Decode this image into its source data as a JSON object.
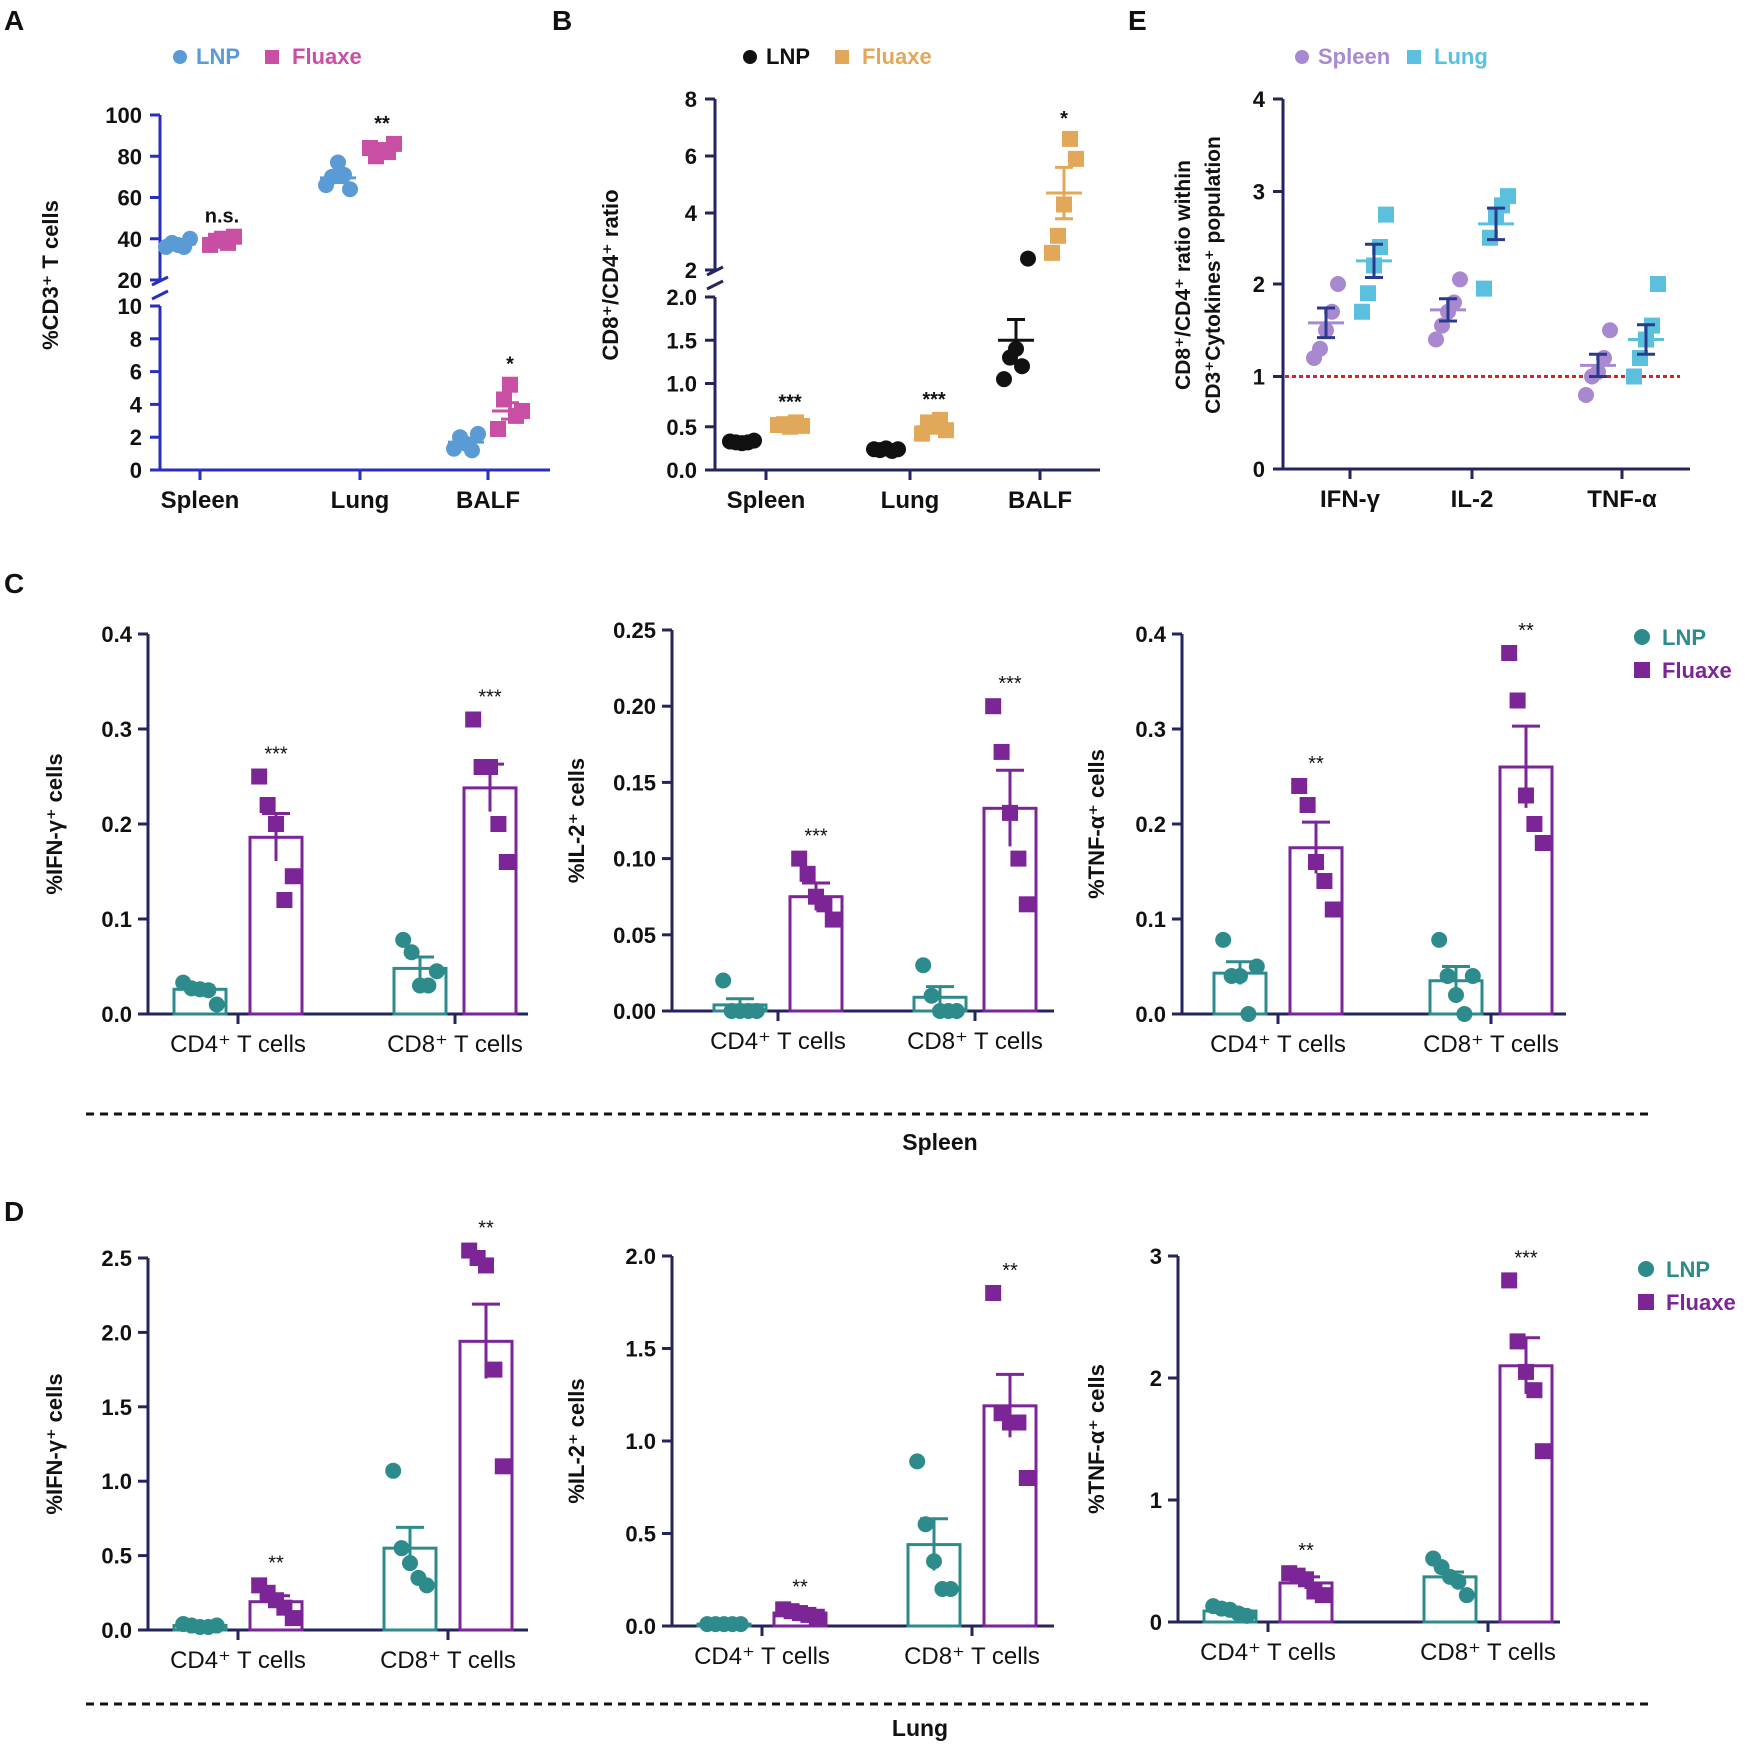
{
  "colors": {
    "axis_blue": "#2a2ebd",
    "axis_dark": "#25255e",
    "lnp_blue": "#5b9bd5",
    "fluaxe_pink": "#c84fa3",
    "lnp_black": "#111111",
    "fluaxe_orange": "#e2a85a",
    "spleen_purple": "#a889cf",
    "lung_cyan": "#5bc0de",
    "lnp_teal": "#2e8b8c",
    "fluaxe_purple": "#7b2596",
    "ref_red": "#e02020"
  },
  "labels": {
    "panel_A": "A",
    "panel_B": "B",
    "panel_C": "C",
    "panel_D": "D",
    "panel_E": "E",
    "spleen_caption": "Spleen",
    "lung_caption": "Lung"
  },
  "chart_data": [
    {
      "id": "A",
      "type": "scatter",
      "ylabel": "%CD3⁺ T cells",
      "categories": [
        "Spleen",
        "Lung",
        "BALF"
      ],
      "yaxis": {
        "broken": true,
        "lower_range": [
          0,
          10
        ],
        "upper_range": [
          20,
          100
        ],
        "lower_ticks": [
          "0",
          "2",
          "4",
          "6",
          "8",
          "10"
        ],
        "upper_ticks": [
          "20",
          "40",
          "60",
          "80",
          "100"
        ]
      },
      "legend": [
        "LNP",
        "Fluaxe"
      ],
      "series": [
        {
          "name": "LNP",
          "marker": "circle",
          "points": [
            [
              36,
              38,
              37,
              36,
              40
            ],
            [
              66,
              70,
              77,
              71,
              64
            ],
            [
              1.3,
              2.0,
              1.6,
              1.2,
              2.2
            ]
          ],
          "means": [
            37.5,
            69.5,
            1.7
          ],
          "sems": [
            0.8,
            2.2,
            0.25
          ]
        },
        {
          "name": "Fluaxe",
          "marker": "square",
          "points": [
            [
              37,
              39,
              40,
              38,
              41
            ],
            [
              84,
              80,
              83,
              82,
              86
            ],
            [
              2.5,
              4.3,
              5.2,
              3.3,
              3.6
            ]
          ],
          "means": [
            39,
            83,
            3.6
          ],
          "sems": [
            0.7,
            1.2,
            0.5
          ]
        }
      ],
      "annotations": [
        "n.s.",
        "**",
        "*"
      ]
    },
    {
      "id": "B",
      "type": "scatter",
      "ylabel": "CD8⁺/CD4⁺ ratio",
      "categories": [
        "Spleen",
        "Lung",
        "BALF"
      ],
      "yaxis": {
        "broken": true,
        "lower_range": [
          0,
          2.0
        ],
        "upper_range": [
          2,
          8
        ],
        "lower_ticks": [
          "0.0",
          "0.5",
          "1.0",
          "1.5",
          "2.0"
        ],
        "upper_ticks": [
          "2",
          "4",
          "6",
          "8"
        ]
      },
      "legend": [
        "LNP",
        "Fluaxe"
      ],
      "series": [
        {
          "name": "LNP",
          "marker": "circle",
          "points": [
            [
              0.33,
              0.32,
              0.31,
              0.32,
              0.34
            ],
            [
              0.24,
              0.23,
              0.25,
              0.22,
              0.24
            ],
            [
              1.05,
              1.3,
              1.4,
              1.2,
              2.4
            ]
          ],
          "means": [
            0.32,
            0.23,
            1.5
          ],
          "sems": [
            0.01,
            0.01,
            0.24
          ]
        },
        {
          "name": "Fluaxe",
          "marker": "square",
          "points": [
            [
              0.52,
              0.53,
              0.5,
              0.55,
              0.51
            ],
            [
              0.42,
              0.55,
              0.5,
              0.58,
              0.46
            ],
            [
              2.6,
              3.2,
              4.3,
              6.6,
              5.9
            ]
          ],
          "means": [
            0.52,
            0.5,
            4.7
          ],
          "sems": [
            0.01,
            0.03,
            0.9
          ]
        }
      ],
      "annotations": [
        "***",
        "***",
        "*"
      ]
    },
    {
      "id": "E",
      "type": "scatter",
      "ylabel_line1": "CD8⁺/CD4⁺ ratio within",
      "ylabel_line2": "CD3⁺Cytokines⁺ population",
      "categories": [
        "IFN-γ",
        "IL-2",
        "TNF-α"
      ],
      "yaxis": {
        "range": [
          0,
          4
        ],
        "ticks": [
          "0",
          "1",
          "2",
          "3",
          "4"
        ]
      },
      "reference_line": 1,
      "legend": [
        "Spleen",
        "Lung"
      ],
      "series": [
        {
          "name": "Spleen",
          "marker": "circle",
          "points": [
            [
              1.2,
              1.3,
              1.5,
              1.7,
              2.0
            ],
            [
              1.4,
              1.55,
              1.7,
              1.8,
              2.05
            ],
            [
              0.8,
              1.0,
              1.05,
              1.2,
              1.5
            ]
          ],
          "means": [
            1.58,
            1.72,
            1.12
          ],
          "sems": [
            0.16,
            0.12,
            0.12
          ]
        },
        {
          "name": "Lung",
          "marker": "square",
          "points": [
            [
              1.7,
              1.9,
              2.2,
              2.4,
              2.75
            ],
            [
              1.95,
              2.5,
              2.75,
              2.85,
              2.95
            ],
            [
              1.0,
              1.2,
              1.4,
              1.55,
              2.0
            ]
          ],
          "means": [
            2.25,
            2.65,
            1.4
          ],
          "sems": [
            0.18,
            0.17,
            0.16
          ]
        }
      ]
    },
    {
      "id": "C1",
      "type": "bar",
      "group": "Spleen",
      "ylabel": "%IFN-γ⁺ cells",
      "categories": [
        "CD4⁺ T cells",
        "CD8⁺ T cells"
      ],
      "yaxis": {
        "range": [
          0,
          0.4
        ],
        "ticks": [
          "0.0",
          "0.1",
          "0.2",
          "0.3",
          "0.4"
        ]
      },
      "series": [
        {
          "name": "LNP",
          "values": [
            0.026,
            0.048
          ],
          "sems": [
            0.004,
            0.012
          ],
          "points": [
            [
              0.033,
              0.027,
              0.026,
              0.025,
              0.01
            ],
            [
              0.078,
              0.065,
              0.03,
              0.03,
              0.045
            ]
          ]
        },
        {
          "name": "Fluaxe",
          "values": [
            0.186,
            0.238
          ],
          "sems": [
            0.025,
            0.025
          ],
          "points": [
            [
              0.25,
              0.22,
              0.2,
              0.12,
              0.145
            ],
            [
              0.31,
              0.26,
              0.26,
              0.2,
              0.16
            ]
          ]
        }
      ],
      "annotations": [
        "***",
        "***"
      ]
    },
    {
      "id": "C2",
      "type": "bar",
      "group": "Spleen",
      "ylabel": "%IL-2⁺ cells",
      "categories": [
        "CD4⁺ T cells",
        "CD8⁺ T cells"
      ],
      "yaxis": {
        "range": [
          0,
          0.25
        ],
        "ticks": [
          "0.00",
          "0.05",
          "0.10",
          "0.15",
          "0.20",
          "0.25"
        ]
      },
      "series": [
        {
          "name": "LNP",
          "values": [
            0.004,
            0.009
          ],
          "sems": [
            0.004,
            0.007
          ],
          "points": [
            [
              0.02,
              0.0,
              0.0,
              0.0,
              0.0
            ],
            [
              0.03,
              0.01,
              0.0,
              0.0,
              0.0
            ]
          ]
        },
        {
          "name": "Fluaxe",
          "values": [
            0.075,
            0.133
          ],
          "sems": [
            0.009,
            0.025
          ],
          "points": [
            [
              0.1,
              0.09,
              0.075,
              0.07,
              0.06
            ],
            [
              0.2,
              0.17,
              0.13,
              0.1,
              0.07
            ]
          ]
        }
      ],
      "annotations": [
        "***",
        "***"
      ]
    },
    {
      "id": "C3",
      "type": "bar",
      "group": "Spleen",
      "ylabel": "%TNF-α⁺ cells",
      "categories": [
        "CD4⁺ T cells",
        "CD8⁺ T cells"
      ],
      "yaxis": {
        "range": [
          0,
          0.4
        ],
        "ticks": [
          "0.0",
          "0.1",
          "0.2",
          "0.3",
          "0.4"
        ]
      },
      "legend": [
        "LNP",
        "Fluaxe"
      ],
      "series": [
        {
          "name": "LNP",
          "values": [
            0.043,
            0.035
          ],
          "sems": [
            0.012,
            0.015
          ],
          "points": [
            [
              0.078,
              0.04,
              0.04,
              0.0,
              0.05
            ],
            [
              0.078,
              0.04,
              0.02,
              0.0,
              0.04
            ]
          ]
        },
        {
          "name": "Fluaxe",
          "values": [
            0.175,
            0.26
          ],
          "sems": [
            0.027,
            0.043
          ],
          "points": [
            [
              0.24,
              0.22,
              0.16,
              0.14,
              0.11
            ],
            [
              0.38,
              0.33,
              0.23,
              0.2,
              0.18
            ]
          ]
        }
      ],
      "annotations": [
        "**",
        "**"
      ]
    },
    {
      "id": "D1",
      "type": "bar",
      "group": "Lung",
      "ylabel": "%IFN-γ⁺ cells",
      "categories": [
        "CD4⁺ T cells",
        "CD8⁺ T cells"
      ],
      "yaxis": {
        "range": [
          0,
          2.5
        ],
        "ticks": [
          "0.0",
          "0.5",
          "1.0",
          "1.5",
          "2.0",
          "2.5"
        ]
      },
      "series": [
        {
          "name": "LNP",
          "values": [
            0.03,
            0.55
          ],
          "sems": [
            0.01,
            0.14
          ],
          "points": [
            [
              0.04,
              0.03,
              0.02,
              0.02,
              0.03
            ],
            [
              1.07,
              0.55,
              0.45,
              0.35,
              0.3
            ]
          ]
        },
        {
          "name": "Fluaxe",
          "values": [
            0.19,
            1.94
          ],
          "sems": [
            0.04,
            0.25
          ],
          "points": [
            [
              0.3,
              0.25,
              0.2,
              0.15,
              0.08
            ],
            [
              2.55,
              2.5,
              2.45,
              1.75,
              1.1
            ]
          ]
        }
      ],
      "annotations": [
        "**",
        "**"
      ]
    },
    {
      "id": "D2",
      "type": "bar",
      "group": "Lung",
      "ylabel": "%IL-2⁺ cells",
      "categories": [
        "CD4⁺ T cells",
        "CD8⁺ T cells"
      ],
      "yaxis": {
        "range": [
          0,
          2.0
        ],
        "ticks": [
          "0.0",
          "0.5",
          "1.0",
          "1.5",
          "2.0"
        ]
      },
      "series": [
        {
          "name": "LNP",
          "values": [
            0.01,
            0.44
          ],
          "sems": [
            0.005,
            0.14
          ],
          "points": [
            [
              0.01,
              0.01,
              0.01,
              0.01,
              0.01
            ],
            [
              0.89,
              0.55,
              0.35,
              0.2,
              0.2
            ]
          ]
        },
        {
          "name": "Fluaxe",
          "values": [
            0.07,
            1.19
          ],
          "sems": [
            0.01,
            0.17
          ],
          "points": [
            [
              0.09,
              0.08,
              0.07,
              0.06,
              0.05
            ],
            [
              1.8,
              1.15,
              1.1,
              1.1,
              0.8
            ]
          ]
        }
      ],
      "annotations": [
        "**",
        "**"
      ]
    },
    {
      "id": "D3",
      "type": "bar",
      "group": "Lung",
      "ylabel": "%TNF-α⁺ cells",
      "categories": [
        "CD4⁺ T cells",
        "CD8⁺ T cells"
      ],
      "yaxis": {
        "range": [
          0,
          3
        ],
        "ticks": [
          "0",
          "1",
          "2",
          "3"
        ]
      },
      "legend": [
        "LNP",
        "Fluaxe"
      ],
      "series": [
        {
          "name": "LNP",
          "values": [
            0.09,
            0.37
          ],
          "sems": [
            0.02,
            0.04
          ],
          "points": [
            [
              0.13,
              0.11,
              0.1,
              0.07,
              0.05
            ],
            [
              0.52,
              0.45,
              0.37,
              0.33,
              0.22
            ]
          ]
        },
        {
          "name": "Fluaxe",
          "values": [
            0.32,
            2.1
          ],
          "sems": [
            0.05,
            0.23
          ],
          "points": [
            [
              0.4,
              0.38,
              0.35,
              0.25,
              0.22
            ],
            [
              2.8,
              2.3,
              2.05,
              1.9,
              1.4
            ]
          ]
        }
      ],
      "annotations": [
        "**",
        "***"
      ]
    }
  ]
}
